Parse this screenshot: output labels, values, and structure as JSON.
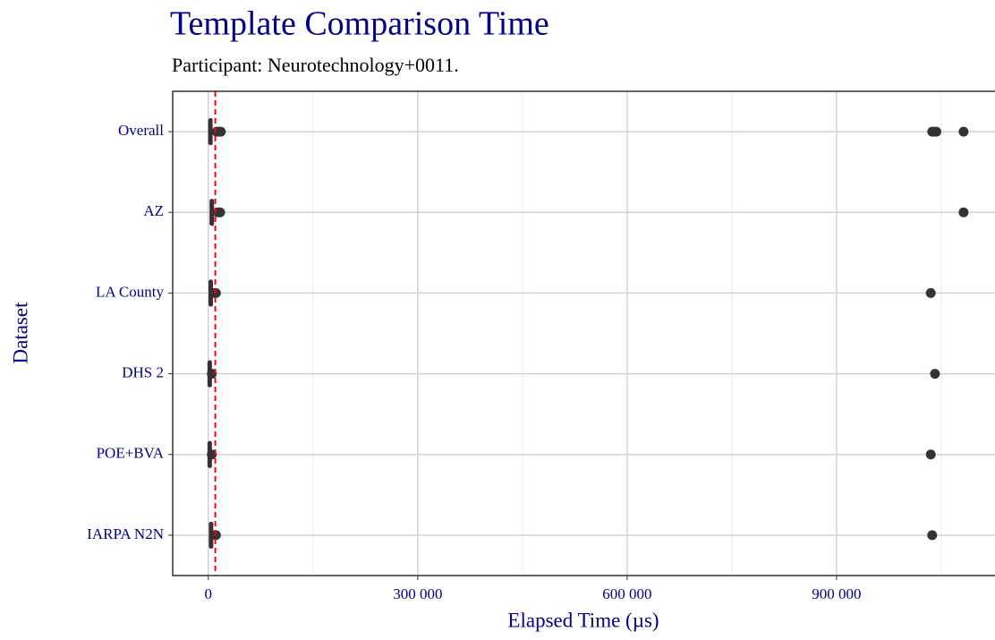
{
  "chart_data": {
    "type": "boxplot",
    "orientation": "horizontal",
    "title": "Template Comparison Time",
    "subtitle": "Participant: Neurotechnology+0011.",
    "x_label": "Elapsed Time (µs)",
    "y_label": "Dataset",
    "categories": [
      "Overall",
      "AZ",
      "LA County",
      "DHS 2",
      "POE+BVA",
      "IARPA N2N"
    ],
    "boxes": [
      {
        "low": 1000,
        "q1": 2500,
        "median": 3000,
        "q3": 4000,
        "high": 8000,
        "outliers": [
          12000,
          15000,
          18000,
          1037000,
          1040000,
          1043000,
          1082000
        ]
      },
      {
        "low": 3000,
        "q1": 4500,
        "median": 5000,
        "q3": 6000,
        "high": 10000,
        "outliers": [
          14000,
          17000,
          1082000
        ]
      },
      {
        "low": 1000,
        "q1": 3000,
        "median": 3500,
        "q3": 4500,
        "high": 7000,
        "outliers": [
          9000,
          11000,
          1035000
        ]
      },
      {
        "low": 0,
        "q1": 1500,
        "median": 2000,
        "q3": 3000,
        "high": 4000,
        "outliers": [
          5000,
          1041000
        ]
      },
      {
        "low": 0,
        "q1": 1500,
        "median": 2000,
        "q3": 3000,
        "high": 4000,
        "outliers": [
          5000,
          1035000
        ]
      },
      {
        "low": 2000,
        "q1": 3500,
        "median": 4000,
        "q3": 5000,
        "high": 8000,
        "outliers": [
          11000,
          1037000
        ]
      }
    ],
    "color": "#333333",
    "reference_line": 10000,
    "reference_color": "#ff0000",
    "xlim": [
      -51000,
      1127000
    ],
    "xticks": [
      0,
      {
        "value": 300000,
        "label": "300 000"
      },
      {
        "value": 600000,
        "label": "600 000"
      },
      {
        "value": 900000,
        "label": "900 000"
      }
    ],
    "x_minor_ticks": [
      150000,
      450000,
      750000,
      1050000
    ],
    "grid": true
  }
}
